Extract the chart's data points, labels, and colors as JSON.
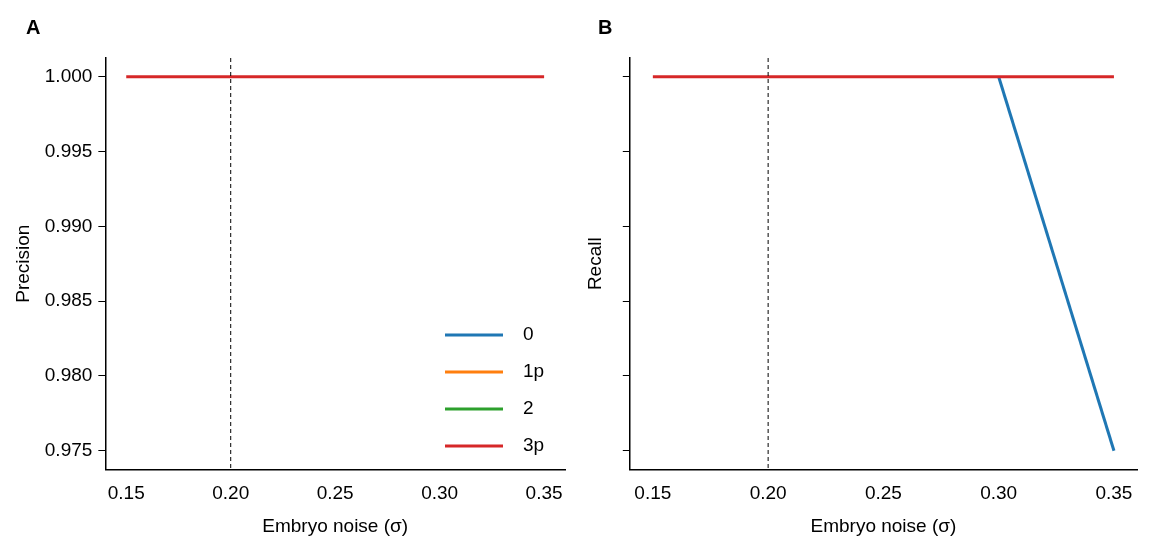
{
  "chart_data": [
    {
      "type": "line",
      "title": "A",
      "xlabel": "Embryo noise (σ)",
      "ylabel": "Precision",
      "x": [
        0.15,
        0.2,
        0.25,
        0.3,
        0.35
      ],
      "series": [
        {
          "name": "0",
          "color": "#1f77b4",
          "values": [
            null,
            null,
            null,
            null,
            null
          ]
        },
        {
          "name": "1p",
          "color": "#ff7f0e",
          "values": [
            null,
            null,
            null,
            null,
            null
          ]
        },
        {
          "name": "2",
          "color": "#2ca02c",
          "values": [
            null,
            null,
            null,
            null,
            null
          ]
        },
        {
          "name": "3p",
          "color": "#d62728",
          "values": [
            1.0,
            1.0,
            1.0,
            1.0,
            1.0
          ]
        }
      ],
      "xlim": [
        0.14,
        0.36
      ],
      "xticks": [
        {
          "value": 0.15,
          "label": "0.15"
        },
        {
          "value": 0.2,
          "label": "0.20"
        },
        {
          "value": 0.25,
          "label": "0.25"
        },
        {
          "value": 0.3,
          "label": "0.30"
        },
        {
          "value": 0.35,
          "label": "0.35"
        }
      ],
      "ylim": [
        0.97375,
        1.00125
      ],
      "yticks": [
        {
          "value": 0.975,
          "label": "0.975"
        },
        {
          "value": 0.98,
          "label": "0.980"
        },
        {
          "value": 0.985,
          "label": "0.985"
        },
        {
          "value": 0.99,
          "label": "0.990"
        },
        {
          "value": 0.995,
          "label": "0.995"
        },
        {
          "value": 1.0,
          "label": "1.000"
        }
      ],
      "ref_lines": [
        {
          "axis": "x",
          "value": 0.2,
          "color": "#000000",
          "line_style": "dashed"
        }
      ],
      "legend": "bottom right",
      "grid": false
    },
    {
      "type": "line",
      "title": "B",
      "xlabel": "Embryo noise (σ)",
      "ylabel": "Recall",
      "x": [
        0.15,
        0.2,
        0.25,
        0.3,
        0.35
      ],
      "series": [
        {
          "color": "#1f77b4",
          "values": [
            null,
            null,
            null,
            1.0,
            0.975
          ]
        },
        {
          "color": "#ff7f0e",
          "values": [
            null,
            null,
            null,
            null,
            null
          ]
        },
        {
          "color": "#2ca02c",
          "values": [
            null,
            null,
            null,
            null,
            null
          ]
        },
        {
          "color": "#d62728",
          "values": [
            1.0,
            1.0,
            1.0,
            1.0,
            1.0
          ]
        }
      ],
      "xlim": [
        0.14,
        0.36
      ],
      "xticks": [
        {
          "value": 0.15,
          "label": "0.15"
        },
        {
          "value": 0.2,
          "label": "0.20"
        },
        {
          "value": 0.25,
          "label": "0.25"
        },
        {
          "value": 0.3,
          "label": "0.30"
        },
        {
          "value": 0.35,
          "label": "0.35"
        }
      ],
      "ylim": [
        0.97375,
        1.00125
      ],
      "yticks": [
        {
          "value": 0.975,
          "label": null
        },
        {
          "value": 0.98,
          "label": null
        },
        {
          "value": 0.985,
          "label": null
        },
        {
          "value": 0.99,
          "label": null
        },
        {
          "value": 0.995,
          "label": null
        },
        {
          "value": 1.0,
          "label": null
        }
      ],
      "ref_lines": [
        {
          "axis": "x",
          "value": 0.2,
          "color": "#000000",
          "line_style": "dashed"
        }
      ],
      "tick_labels": "x",
      "legend": false,
      "grid": false
    }
  ]
}
